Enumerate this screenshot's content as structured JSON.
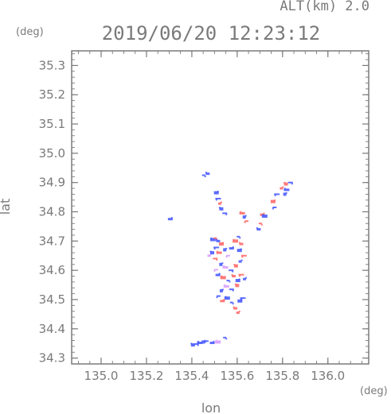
{
  "chart_data": {
    "type": "scatter",
    "title": "2019/06/20 12:23:12",
    "subtitle": "ALT(km) 2.0",
    "xlabel": "lon",
    "ylabel": "lat",
    "x_unit": "(deg)",
    "y_unit": "(deg)",
    "xlim": [
      134.87,
      136.18
    ],
    "ylim": [
      34.28,
      35.35
    ],
    "x_ticks": [
      "135.0",
      "135.2",
      "135.4",
      "135.6",
      "135.8",
      "136.0"
    ],
    "y_ticks": [
      "34.3",
      "34.4",
      "34.5",
      "34.6",
      "34.7",
      "34.8",
      "34.9",
      "35.0",
      "35.1",
      "35.2",
      "35.3"
    ],
    "grid": false,
    "colors": {
      "axis": "#7a7a7a",
      "positive": "#ff6b6b",
      "negative": "#4b5cff",
      "neutral": "#d9a0ff"
    },
    "points": [
      {
        "lon": 135.452,
        "lat": 34.925,
        "sign": "negative"
      },
      {
        "lon": 135.47,
        "lat": 34.93,
        "sign": "negative"
      },
      {
        "lon": 135.508,
        "lat": 34.865,
        "sign": "negative"
      },
      {
        "lon": 135.516,
        "lat": 34.845,
        "sign": "negative"
      },
      {
        "lon": 135.523,
        "lat": 34.828,
        "sign": "positive"
      },
      {
        "lon": 135.53,
        "lat": 34.81,
        "sign": "negative"
      },
      {
        "lon": 135.545,
        "lat": 34.795,
        "sign": "negative"
      },
      {
        "lon": 135.622,
        "lat": 34.795,
        "sign": "positive"
      },
      {
        "lon": 135.631,
        "lat": 34.782,
        "sign": "negative"
      },
      {
        "lon": 135.641,
        "lat": 34.768,
        "sign": "positive"
      },
      {
        "lon": 135.711,
        "lat": 34.79,
        "sign": "positive"
      },
      {
        "lon": 135.721,
        "lat": 34.785,
        "sign": "negative"
      },
      {
        "lon": 135.702,
        "lat": 34.76,
        "sign": "positive"
      },
      {
        "lon": 135.695,
        "lat": 34.74,
        "sign": "negative"
      },
      {
        "lon": 135.758,
        "lat": 34.835,
        "sign": "positive"
      },
      {
        "lon": 135.775,
        "lat": 34.86,
        "sign": "negative"
      },
      {
        "lon": 135.795,
        "lat": 34.88,
        "sign": "positive"
      },
      {
        "lon": 135.815,
        "lat": 34.895,
        "sign": "positive"
      },
      {
        "lon": 135.835,
        "lat": 34.9,
        "sign": "negative"
      },
      {
        "lon": 135.818,
        "lat": 34.875,
        "sign": "negative"
      },
      {
        "lon": 135.81,
        "lat": 34.86,
        "sign": "negative"
      },
      {
        "lon": 135.765,
        "lat": 34.815,
        "sign": "negative"
      },
      {
        "lon": 135.305,
        "lat": 34.775,
        "sign": "negative"
      },
      {
        "lon": 135.493,
        "lat": 34.705,
        "sign": "negative"
      },
      {
        "lon": 135.503,
        "lat": 34.71,
        "sign": "positive"
      },
      {
        "lon": 135.516,
        "lat": 34.7,
        "sign": "negative"
      },
      {
        "lon": 135.53,
        "lat": 34.69,
        "sign": "positive"
      },
      {
        "lon": 135.508,
        "lat": 34.678,
        "sign": "negative"
      },
      {
        "lon": 135.476,
        "lat": 34.65,
        "sign": "neutral"
      },
      {
        "lon": 135.49,
        "lat": 34.66,
        "sign": "negative"
      },
      {
        "lon": 135.503,
        "lat": 34.64,
        "sign": "positive"
      },
      {
        "lon": 135.52,
        "lat": 34.66,
        "sign": "positive"
      },
      {
        "lon": 135.545,
        "lat": 34.67,
        "sign": "negative"
      },
      {
        "lon": 135.56,
        "lat": 34.65,
        "sign": "neutral"
      },
      {
        "lon": 135.575,
        "lat": 34.675,
        "sign": "negative"
      },
      {
        "lon": 135.592,
        "lat": 34.7,
        "sign": "positive"
      },
      {
        "lon": 135.605,
        "lat": 34.715,
        "sign": "negative"
      },
      {
        "lon": 135.618,
        "lat": 34.69,
        "sign": "positive"
      },
      {
        "lon": 135.61,
        "lat": 34.668,
        "sign": "negative"
      },
      {
        "lon": 135.63,
        "lat": 34.65,
        "sign": "positive"
      },
      {
        "lon": 135.613,
        "lat": 34.63,
        "sign": "negative"
      },
      {
        "lon": 135.595,
        "lat": 34.615,
        "sign": "positive"
      },
      {
        "lon": 135.573,
        "lat": 34.6,
        "sign": "negative"
      },
      {
        "lon": 135.548,
        "lat": 34.61,
        "sign": "neutral"
      },
      {
        "lon": 135.528,
        "lat": 34.62,
        "sign": "negative"
      },
      {
        "lon": 135.507,
        "lat": 34.602,
        "sign": "neutral"
      },
      {
        "lon": 135.515,
        "lat": 34.584,
        "sign": "negative"
      },
      {
        "lon": 135.538,
        "lat": 34.575,
        "sign": "positive"
      },
      {
        "lon": 135.56,
        "lat": 34.565,
        "sign": "negative"
      },
      {
        "lon": 135.585,
        "lat": 34.58,
        "sign": "positive"
      },
      {
        "lon": 135.603,
        "lat": 34.565,
        "sign": "negative"
      },
      {
        "lon": 135.618,
        "lat": 34.585,
        "sign": "positive"
      },
      {
        "lon": 135.632,
        "lat": 34.57,
        "sign": "negative"
      },
      {
        "lon": 135.6,
        "lat": 34.548,
        "sign": "positive"
      },
      {
        "lon": 135.575,
        "lat": 34.535,
        "sign": "negative"
      },
      {
        "lon": 135.552,
        "lat": 34.545,
        "sign": "neutral"
      },
      {
        "lon": 135.53,
        "lat": 34.53,
        "sign": "negative"
      },
      {
        "lon": 135.518,
        "lat": 34.512,
        "sign": "negative"
      },
      {
        "lon": 135.535,
        "lat": 34.495,
        "sign": "positive"
      },
      {
        "lon": 135.556,
        "lat": 34.505,
        "sign": "negative"
      },
      {
        "lon": 135.575,
        "lat": 34.49,
        "sign": "negative"
      },
      {
        "lon": 135.592,
        "lat": 34.47,
        "sign": "positive"
      },
      {
        "lon": 135.612,
        "lat": 34.495,
        "sign": "negative"
      },
      {
        "lon": 135.625,
        "lat": 34.505,
        "sign": "negative"
      },
      {
        "lon": 135.603,
        "lat": 34.455,
        "sign": "positive"
      },
      {
        "lon": 135.405,
        "lat": 34.345,
        "sign": "negative"
      },
      {
        "lon": 135.42,
        "lat": 34.348,
        "sign": "negative"
      },
      {
        "lon": 135.435,
        "lat": 34.352,
        "sign": "negative"
      },
      {
        "lon": 135.45,
        "lat": 34.355,
        "sign": "negative"
      },
      {
        "lon": 135.465,
        "lat": 34.358,
        "sign": "negative"
      },
      {
        "lon": 135.49,
        "lat": 34.352,
        "sign": "negative"
      },
      {
        "lon": 135.515,
        "lat": 34.355,
        "sign": "neutral"
      },
      {
        "lon": 135.545,
        "lat": 34.37,
        "sign": "negative"
      }
    ]
  }
}
